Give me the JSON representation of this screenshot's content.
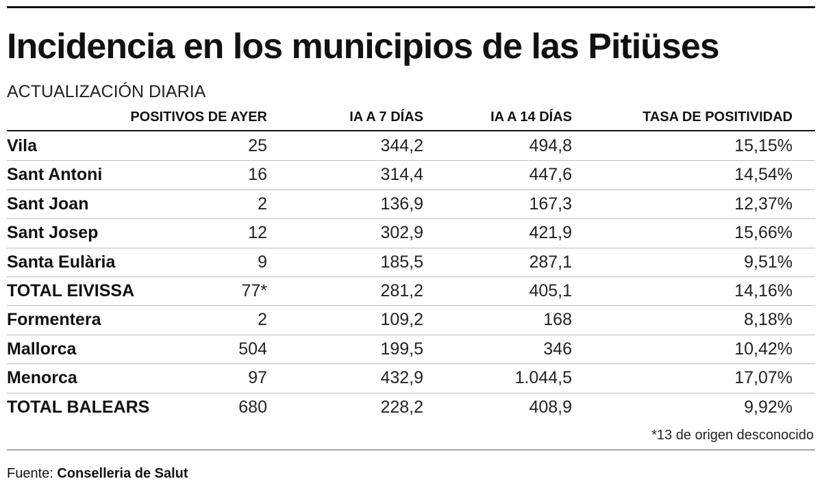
{
  "header": {
    "title": "Incidencia en los municipios de las Pitiüses",
    "subtitle": "ACTUALIZACIÓN DIARIA"
  },
  "table": {
    "columns": [
      "POSITIVOS DE AYER",
      "IA A 7 DÍAS",
      "IA A 14 DÍAS",
      "TASA DE POSITIVIDAD"
    ],
    "rows": [
      [
        "Vila",
        "25",
        "344,2",
        "494,8",
        "15,15%"
      ],
      [
        "Sant Antoni",
        "16",
        "314,4",
        "447,6",
        "14,54%"
      ],
      [
        "Sant Joan",
        "2",
        "136,9",
        "167,3",
        "12,37%"
      ],
      [
        "Sant Josep",
        "12",
        "302,9",
        "421,9",
        "15,66%"
      ],
      [
        "Santa Eulària",
        "9",
        "185,5",
        "287,1",
        "9,51%"
      ],
      [
        "TOTAL EIVISSA",
        "77*",
        "281,2",
        "405,1",
        "14,16%"
      ],
      [
        "Formentera",
        "2",
        "109,2",
        "168",
        "8,18%"
      ],
      [
        "Mallorca",
        "504",
        "199,5",
        "346",
        "10,42%"
      ],
      [
        "Menorca",
        "97",
        "432,9",
        "1.044,5",
        "17,07%"
      ],
      [
        "TOTAL BALEARS",
        "680",
        "228,2",
        "408,9",
        "9,92%"
      ]
    ],
    "footnote": "*13 de origen desconocido"
  },
  "source": {
    "label": "Fuente:",
    "name": "Conselleria de Salut"
  }
}
